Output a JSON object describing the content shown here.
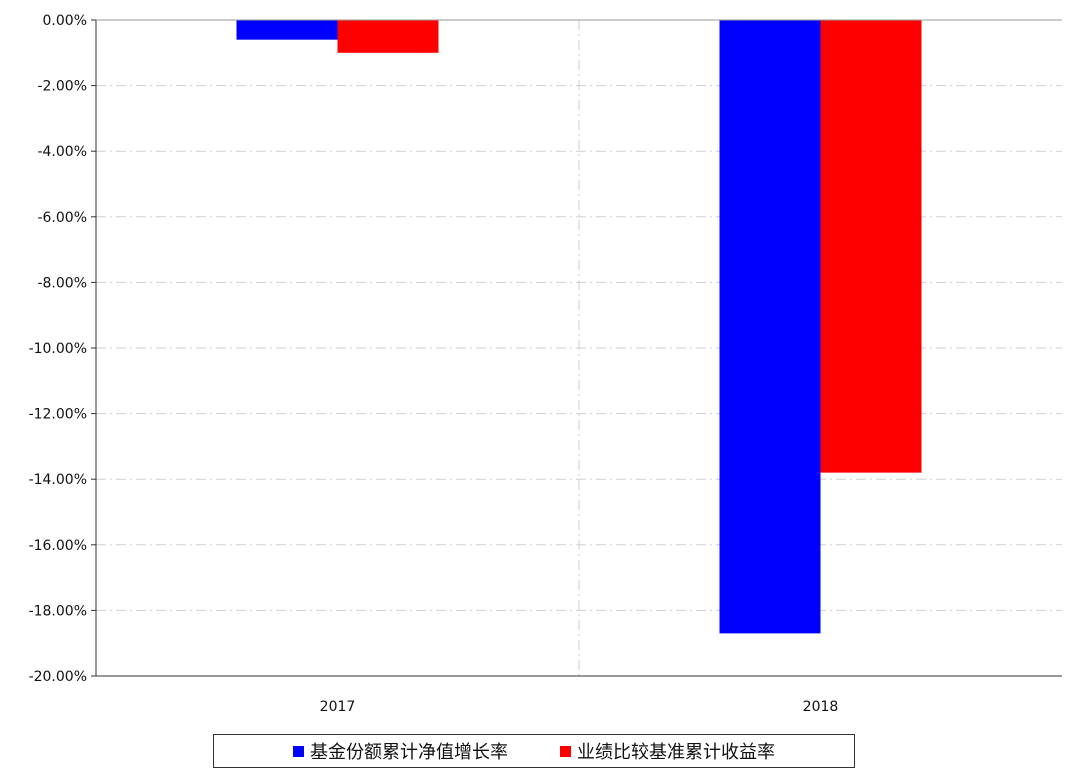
{
  "chart_data": {
    "type": "bar",
    "categories": [
      "2017",
      "2018"
    ],
    "series": [
      {
        "name": "基金份额累计净值增长率",
        "color": "#0000ff",
        "values": [
          -0.6,
          -18.7
        ]
      },
      {
        "name": "业绩比较基准累计收益率",
        "color": "#ff0000",
        "values": [
          -1.0,
          -13.8
        ]
      }
    ],
    "ylim": [
      -20,
      0
    ],
    "yticks": [
      "0.00%",
      "-2.00%",
      "-4.00%",
      "-6.00%",
      "-8.00%",
      "-10.00%",
      "-12.00%",
      "-14.00%",
      "-16.00%",
      "-18.00%",
      "-20.00%"
    ],
    "grid": true,
    "legend_position": "bottom"
  }
}
